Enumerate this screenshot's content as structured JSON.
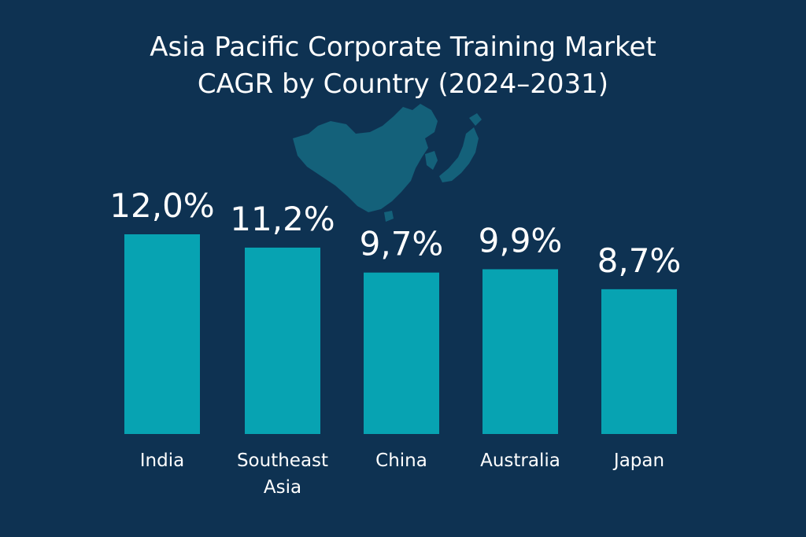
{
  "colors": {
    "background": "#0e3252",
    "bar": "#07a3b2",
    "map": "#14617a",
    "text": "#ffffff"
  },
  "chart_data": {
    "type": "bar",
    "title": "Asia Pacific Corporate Training Market",
    "subtitle": "CAGR by Country (2024–2031)",
    "categories": [
      "India",
      "Southeast Asia",
      "China",
      "Australia",
      "Japan"
    ],
    "values": [
      12.0,
      11.2,
      9.7,
      9.9,
      8.7
    ],
    "value_labels": [
      "12,0%",
      "11,2%",
      "9,7%",
      "9,9%",
      "8,7%"
    ],
    "xlabel": "",
    "ylabel": "",
    "ylim": [
      0,
      15
    ],
    "grid": false,
    "legend": "none"
  },
  "decoration": {
    "icon": "east-asia-map-icon"
  }
}
